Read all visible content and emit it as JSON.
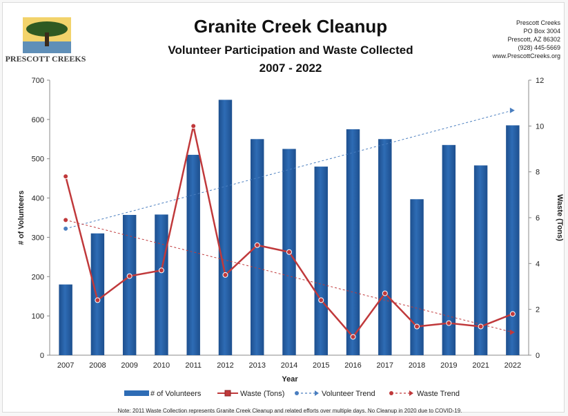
{
  "header": {
    "title": "Granite Creek Cleanup",
    "subtitle": "Volunteer Participation and Waste Collected",
    "years": "2007 - 2022"
  },
  "logo": {
    "text": "PRESCOTT CREEKS"
  },
  "contact": {
    "name": "Prescott Creeks",
    "box": "PO Box 3004",
    "city": "Prescott, AZ 86302",
    "phone": "(928) 445-5669",
    "web": "www.PrescottCreeks.org"
  },
  "note": "Note: 2011 Waste Collection represents Granite Creek Cleanup and related efforts over multiple days. No Cleanup in 2020 due to COVID-19.",
  "colors": {
    "bar": "#2e6cb5",
    "bar_dark": "#1d4f8e",
    "waste": "#c0393b",
    "volunteer_trend": "#4a7ebf",
    "waste_trend": "#c0393b"
  },
  "chart_data": {
    "type": "bar",
    "xlabel": "Year",
    "ylabel_left": "# of Volunteers",
    "ylabel_right": "Waste (Tons)",
    "ylim_left": [
      0,
      700
    ],
    "ylim_right": [
      0,
      12
    ],
    "yticks_left": [
      0,
      100,
      200,
      300,
      400,
      500,
      600,
      700
    ],
    "yticks_right": [
      0,
      2,
      4,
      6,
      8,
      10,
      12
    ],
    "categories": [
      "2007",
      "2008",
      "2009",
      "2010",
      "2011",
      "2012",
      "2013",
      "2014",
      "2015",
      "2016",
      "2017",
      "2018",
      "2019",
      "2021",
      "2022"
    ],
    "series": [
      {
        "name": "# of Volunteers",
        "type": "bar",
        "axis": "left",
        "values": [
          180,
          310,
          357,
          358,
          510,
          650,
          550,
          525,
          480,
          575,
          550,
          397,
          535,
          483,
          585
        ]
      },
      {
        "name": "Waste (Tons)",
        "type": "line",
        "axis": "right",
        "values": [
          7.8,
          2.4,
          3.45,
          3.7,
          10.0,
          3.5,
          4.8,
          4.5,
          2.4,
          0.8,
          2.7,
          1.25,
          1.4,
          1.25,
          1.8
        ]
      },
      {
        "name": "Volunteer Trend",
        "type": "trend",
        "axis": "left",
        "start": 322,
        "end": 623
      },
      {
        "name": "Waste Trend",
        "type": "trend",
        "axis": "right",
        "start": 5.9,
        "end": 1.0
      }
    ],
    "legend_position": "bottom",
    "grid": false
  }
}
